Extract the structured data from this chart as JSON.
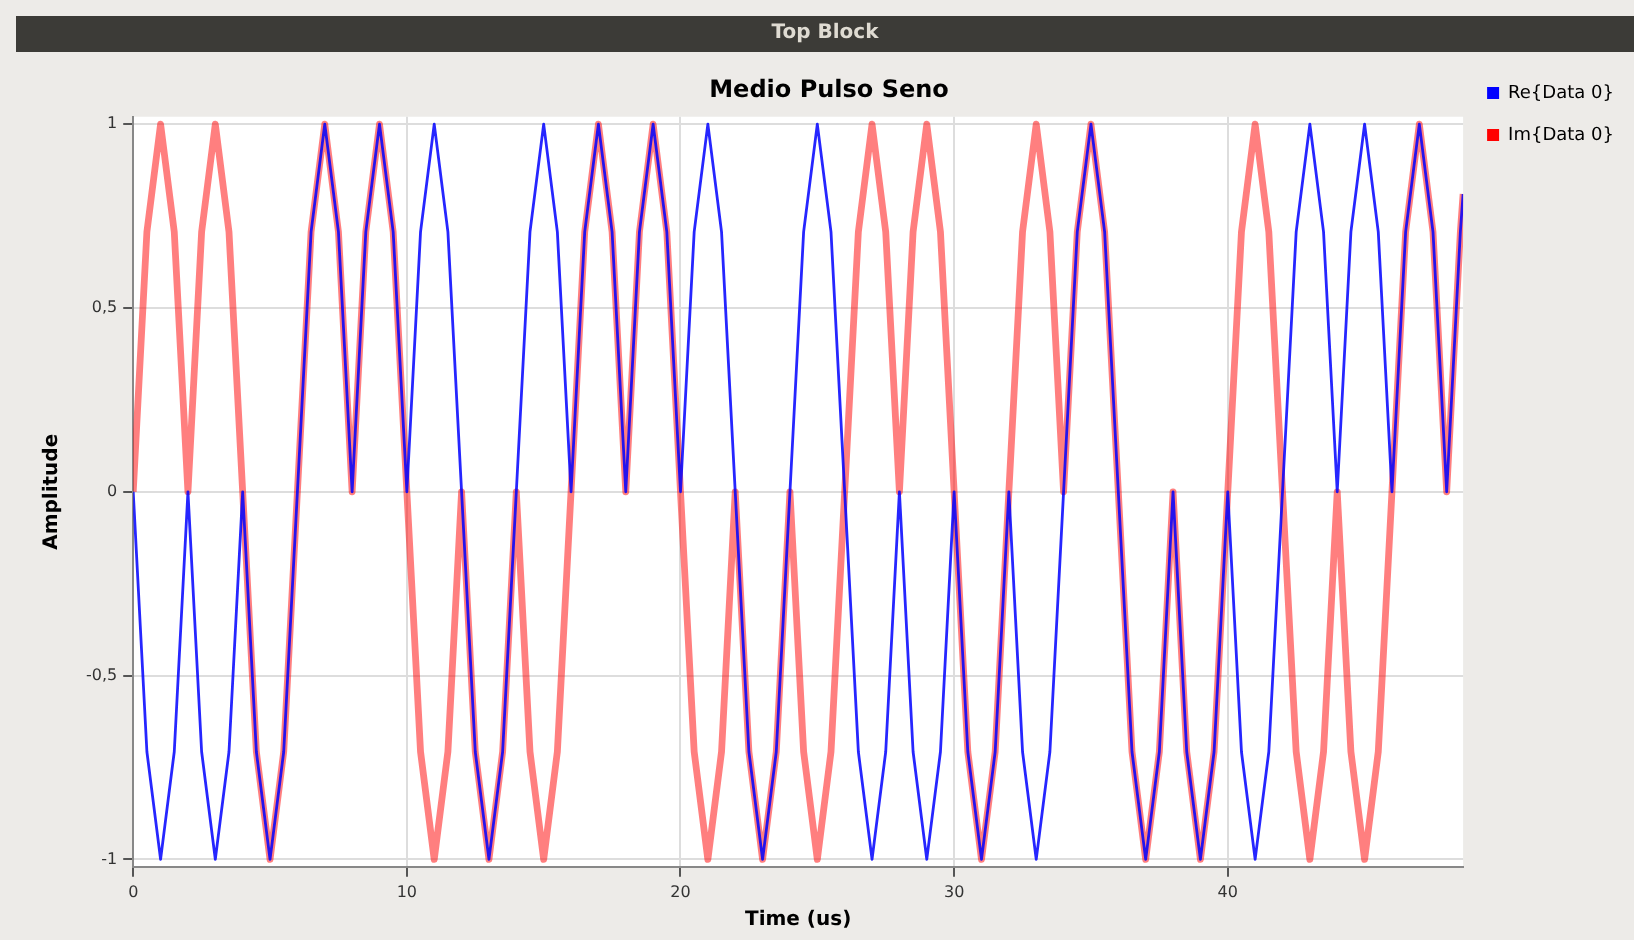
{
  "chart_data": {
    "type": "line",
    "title": "Medio Pulso Seno",
    "xlabel": "Time (us)",
    "ylabel": "Amplitude",
    "annotations": [
      "Top Block"
    ],
    "x": [
      0,
      0.5,
      1,
      1.5,
      2,
      2.5,
      3,
      3.5,
      4,
      4.5,
      5,
      5.5,
      6,
      6.5,
      7,
      7.5,
      8,
      8.5,
      9,
      9.5,
      10,
      10.5,
      11,
      11.5,
      12,
      12.5,
      13,
      13.5,
      14,
      14.5,
      15,
      15.5,
      16,
      16.5,
      17,
      17.5,
      18,
      18.5,
      19,
      19.5,
      20,
      20.5,
      21,
      21.5,
      22,
      22.5,
      23,
      23.5,
      24,
      24.5,
      25,
      25.5,
      26,
      26.5,
      27,
      27.5,
      28,
      28.5,
      29,
      29.5,
      30,
      30.5,
      31,
      31.5,
      32,
      32.5,
      33,
      33.5,
      34,
      34.5,
      35,
      35.5,
      36,
      36.5,
      37,
      37.5,
      38,
      38.5,
      39,
      39.5,
      40,
      40.5,
      41,
      41.5,
      42,
      42.5,
      43,
      43.5,
      44,
      44.5,
      45,
      45.5,
      46,
      46.5,
      47,
      47.5,
      48,
      48.5,
      48.6
    ],
    "series": [
      {
        "name": "Re{Data 0}",
        "color": "#0000ff",
        "values": [
          0,
          -0.707,
          -1,
          -0.707,
          0,
          -0.707,
          -1,
          -0.707,
          0,
          -0.707,
          -1,
          -0.707,
          0,
          0.707,
          1,
          0.707,
          0,
          0.707,
          1,
          0.707,
          0,
          0.707,
          1,
          0.707,
          0,
          -0.707,
          -1,
          -0.707,
          0,
          0.707,
          1,
          0.707,
          0,
          0.707,
          1,
          0.707,
          0,
          0.707,
          1,
          0.707,
          0,
          0.707,
          1,
          0.707,
          0,
          -0.707,
          -1,
          -0.707,
          0,
          0.707,
          1,
          0.707,
          0,
          -0.707,
          -1,
          -0.707,
          0,
          -0.707,
          -1,
          -0.707,
          0,
          -0.707,
          -1,
          -0.707,
          0,
          -0.707,
          -1,
          -0.707,
          0,
          0.707,
          1,
          0.707,
          0,
          -0.707,
          -1,
          -0.707,
          0,
          -0.707,
          -1,
          -0.707,
          0,
          -0.707,
          -1,
          -0.707,
          0,
          0.707,
          1,
          0.707,
          0,
          0.707,
          1,
          0.707,
          0,
          0.707,
          1,
          0.707,
          0,
          0.707,
          0.81
        ]
      },
      {
        "name": "Im{Data 0}",
        "color": "#ff0000",
        "values": [
          0,
          0.707,
          1,
          0.707,
          0,
          0.707,
          1,
          0.707,
          0,
          -0.707,
          -1,
          -0.707,
          0,
          0.707,
          1,
          0.707,
          0,
          0.707,
          1,
          0.707,
          0,
          -0.707,
          -1,
          -0.707,
          0,
          -0.707,
          -1,
          -0.707,
          0,
          -0.707,
          -1,
          -0.707,
          0,
          0.707,
          1,
          0.707,
          0,
          0.707,
          1,
          0.707,
          0,
          -0.707,
          -1,
          -0.707,
          0,
          -0.707,
          -1,
          -0.707,
          0,
          -0.707,
          -1,
          -0.707,
          0,
          0.707,
          1,
          0.707,
          0,
          0.707,
          1,
          0.707,
          0,
          -0.707,
          -1,
          -0.707,
          0,
          0.707,
          1,
          0.707,
          0,
          0.707,
          1,
          0.707,
          0,
          -0.707,
          -1,
          -0.707,
          0,
          -0.707,
          -1,
          -0.707,
          0,
          0.707,
          1,
          0.707,
          0,
          -0.707,
          -1,
          -0.707,
          0,
          -0.707,
          -1,
          -0.707,
          0,
          0.707,
          1,
          0.707,
          0,
          0.707,
          0.81
        ]
      }
    ],
    "xlim": [
      0,
      48.6
    ],
    "xticks": [
      0,
      10,
      20,
      30,
      40
    ],
    "ylim": [
      -1.02,
      1.02
    ],
    "yticks": [
      -1,
      {
        "value": -0.5,
        "label": "-0,5"
      },
      0,
      {
        "value": 0.5,
        "label": "0,5"
      },
      1
    ],
    "grid": true,
    "legend": "top right",
    "marker": "none",
    "line_style": "solid"
  }
}
